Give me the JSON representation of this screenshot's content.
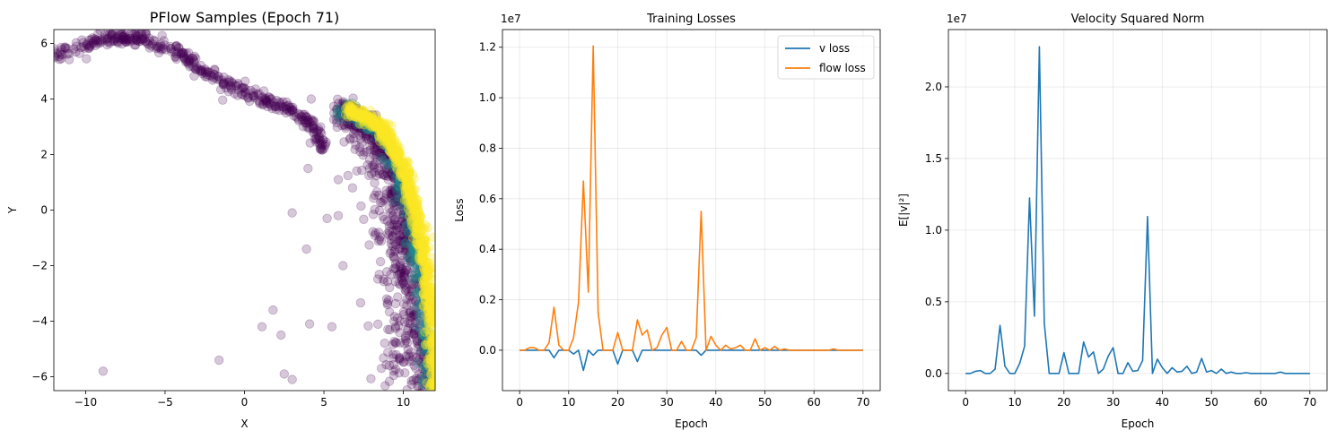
{
  "chart_data": [
    {
      "type": "scatter",
      "title": "PFlow Samples (Epoch 71)",
      "xlabel": "X",
      "ylabel": "Y",
      "xlim": [
        -12,
        12
      ],
      "ylim": [
        -6.5,
        6.5
      ],
      "xticks": [
        -10,
        -5,
        0,
        5,
        10
      ],
      "yticks": [
        -6,
        -4,
        -2,
        0,
        2,
        4,
        6
      ],
      "xtick_labels": [
        "−10",
        "−5",
        "0",
        "5",
        "10"
      ],
      "ytick_labels": [
        "−6",
        "−4",
        "−2",
        "0",
        "2",
        "4",
        "6"
      ],
      "grid": false,
      "colors": {
        "low": "#440154",
        "mid": "#21918c",
        "high": "#fde725"
      },
      "arc": {
        "x": [
          -12,
          -11,
          -10,
          -9,
          -8,
          -7,
          -6,
          -5,
          -4,
          -3,
          -2,
          -1,
          0,
          1,
          2,
          3,
          4,
          4.5,
          5
        ],
        "y": [
          5.5,
          5.8,
          6.0,
          6.15,
          6.2,
          6.2,
          6.1,
          5.9,
          5.6,
          5.2,
          4.85,
          4.5,
          4.2,
          4.0,
          3.8,
          3.6,
          3.2,
          2.8,
          2.2
        ]
      },
      "band": {
        "x": [
          6.5,
          7.5,
          8.5,
          9.3,
          10.0,
          10.5,
          11.0,
          11.4,
          11.7,
          11.9,
          12.0
        ],
        "y": [
          3.6,
          3.4,
          3.0,
          2.4,
          1.5,
          0.5,
          -0.8,
          -2.0,
          -3.5,
          -5.0,
          -6.5
        ]
      },
      "outliers": [
        {
          "x": -8.9,
          "y": -5.8
        },
        {
          "x": -1.6,
          "y": -5.4
        },
        {
          "x": 1.1,
          "y": -4.2
        },
        {
          "x": 2.3,
          "y": -4.5
        },
        {
          "x": 1.8,
          "y": -3.6
        },
        {
          "x": 2.5,
          "y": -5.9
        },
        {
          "x": 3.0,
          "y": -6.1
        },
        {
          "x": 4.1,
          "y": -4.1
        },
        {
          "x": 3.9,
          "y": -1.4
        },
        {
          "x": 3.0,
          "y": -0.1
        },
        {
          "x": 4.0,
          "y": 1.5
        },
        {
          "x": 5.5,
          "y": -4.2
        },
        {
          "x": 5.9,
          "y": 1.1
        },
        {
          "x": 6.8,
          "y": 0.8
        },
        {
          "x": 5.9,
          "y": -0.2
        },
        {
          "x": 6.2,
          "y": -2.0
        },
        {
          "x": 5.2,
          "y": -0.3
        },
        {
          "x": 4.2,
          "y": 4.0
        }
      ]
    },
    {
      "type": "line",
      "title": "Training Losses",
      "xlabel": "Epoch",
      "ylabel": "Loss",
      "scale_label": "1e7",
      "xlim": [
        -3.5,
        73.5
      ],
      "ylim": [
        -0.16,
        1.27
      ],
      "xticks": [
        0,
        10,
        20,
        30,
        40,
        50,
        60,
        70
      ],
      "yticks": [
        0.0,
        0.2,
        0.4,
        0.6,
        0.8,
        1.0,
        1.2
      ],
      "xtick_labels": [
        "0",
        "10",
        "20",
        "30",
        "40",
        "50",
        "60",
        "70"
      ],
      "ytick_labels": [
        "0.0",
        "0.2",
        "0.4",
        "0.6",
        "0.8",
        "1.0",
        "1.2"
      ],
      "grid": true,
      "legend": "top-right",
      "series": [
        {
          "name": "v loss",
          "color": "#1f77b4",
          "x": [
            0,
            1,
            2,
            3,
            4,
            5,
            6,
            7,
            8,
            9,
            10,
            11,
            12,
            13,
            14,
            15,
            16,
            17,
            18,
            19,
            20,
            21,
            22,
            23,
            24,
            25,
            26,
            27,
            28,
            29,
            30,
            31,
            32,
            33,
            34,
            35,
            36,
            37,
            38,
            39,
            40,
            41,
            42,
            43,
            44,
            45,
            46,
            47,
            48,
            49,
            50,
            51,
            52,
            53,
            54,
            55,
            56,
            57,
            58,
            59,
            60,
            61,
            62,
            63,
            64,
            65,
            66,
            67,
            68,
            69,
            70
          ],
          "y": [
            0,
            0,
            0,
            0,
            0,
            0,
            0,
            -0.03,
            0,
            0,
            0,
            -0.015,
            0,
            -0.08,
            0,
            -0.02,
            0,
            0,
            0,
            0,
            -0.055,
            0,
            0,
            0,
            -0.045,
            0,
            0,
            0,
            0,
            0,
            0,
            0,
            0,
            0,
            0,
            0,
            0,
            -0.02,
            0,
            0,
            0,
            0,
            0,
            0,
            0,
            0,
            0,
            0,
            0,
            0,
            0,
            0,
            0,
            0,
            0,
            0,
            0,
            0,
            0,
            0,
            0,
            0,
            0,
            0,
            0,
            0,
            0,
            0,
            0,
            0,
            0
          ]
        },
        {
          "name": "flow loss",
          "color": "#ff7f0e",
          "x": [
            0,
            1,
            2,
            3,
            4,
            5,
            6,
            7,
            8,
            9,
            10,
            11,
            12,
            13,
            14,
            15,
            16,
            17,
            18,
            19,
            20,
            21,
            22,
            23,
            24,
            25,
            26,
            27,
            28,
            29,
            30,
            31,
            32,
            33,
            34,
            35,
            36,
            37,
            38,
            39,
            40,
            41,
            42,
            43,
            44,
            45,
            46,
            47,
            48,
            49,
            50,
            51,
            52,
            53,
            54,
            55,
            56,
            57,
            58,
            59,
            60,
            61,
            62,
            63,
            64,
            65,
            66,
            67,
            68,
            69,
            70
          ],
          "y": [
            0,
            0,
            0.01,
            0.01,
            0,
            0,
            0.03,
            0.17,
            0.02,
            0,
            0,
            0.05,
            0.19,
            0.67,
            0.23,
            1.205,
            0.15,
            0,
            0,
            0,
            0.07,
            0,
            0,
            0,
            0.12,
            0.06,
            0.08,
            0,
            0.01,
            0.06,
            0.09,
            0,
            0,
            0.035,
            0,
            0,
            0.05,
            0.55,
            0,
            0.055,
            0.02,
            0,
            0.02,
            0.005,
            0.01,
            0.02,
            0,
            0,
            0.045,
            0,
            0.01,
            0,
            0.015,
            0,
            0.005,
            0,
            0,
            0,
            0,
            0,
            0,
            0,
            0,
            0,
            0.005,
            0,
            0,
            0,
            0,
            0,
            0
          ]
        }
      ]
    },
    {
      "type": "line",
      "title": "Velocity Squared Norm",
      "xlabel": "Epoch",
      "ylabel": "E[|v|²]",
      "scale_label": "1e7",
      "xlim": [
        -3.5,
        73.5
      ],
      "ylim": [
        -0.12,
        2.4
      ],
      "xticks": [
        0,
        10,
        20,
        30,
        40,
        50,
        60,
        70
      ],
      "yticks": [
        0.0,
        0.5,
        1.0,
        1.5,
        2.0
      ],
      "xtick_labels": [
        "0",
        "10",
        "20",
        "30",
        "40",
        "50",
        "60",
        "70"
      ],
      "ytick_labels": [
        "0.0",
        "0.5",
        "1.0",
        "1.5",
        "2.0"
      ],
      "grid": true,
      "series": [
        {
          "color": "#1f77b4",
          "x": [
            0,
            1,
            2,
            3,
            4,
            5,
            6,
            7,
            8,
            9,
            10,
            11,
            12,
            13,
            14,
            15,
            16,
            17,
            18,
            19,
            20,
            21,
            22,
            23,
            24,
            25,
            26,
            27,
            28,
            29,
            30,
            31,
            32,
            33,
            34,
            35,
            36,
            37,
            38,
            39,
            40,
            41,
            42,
            43,
            44,
            45,
            46,
            47,
            48,
            49,
            50,
            51,
            52,
            53,
            54,
            55,
            56,
            57,
            58,
            59,
            60,
            61,
            62,
            63,
            64,
            65,
            66,
            67,
            68,
            69,
            70
          ],
          "y": [
            0,
            0,
            0.015,
            0.02,
            0,
            0,
            0.03,
            0.335,
            0.05,
            0,
            0,
            0.07,
            0.19,
            1.225,
            0.4,
            2.28,
            0.35,
            0,
            0,
            0,
            0.145,
            0,
            0,
            0,
            0.22,
            0.115,
            0.15,
            0,
            0.03,
            0.12,
            0.18,
            0,
            0,
            0.075,
            0.015,
            0.02,
            0.09,
            1.095,
            0,
            0.1,
            0.04,
            0,
            0.04,
            0.01,
            0.015,
            0.05,
            0,
            0.01,
            0.105,
            0.01,
            0.02,
            0,
            0.03,
            0,
            0.01,
            0,
            0,
            0.005,
            0,
            0,
            0,
            0,
            0,
            0,
            0.01,
            0,
            0,
            0,
            0,
            0,
            0
          ]
        }
      ]
    }
  ]
}
